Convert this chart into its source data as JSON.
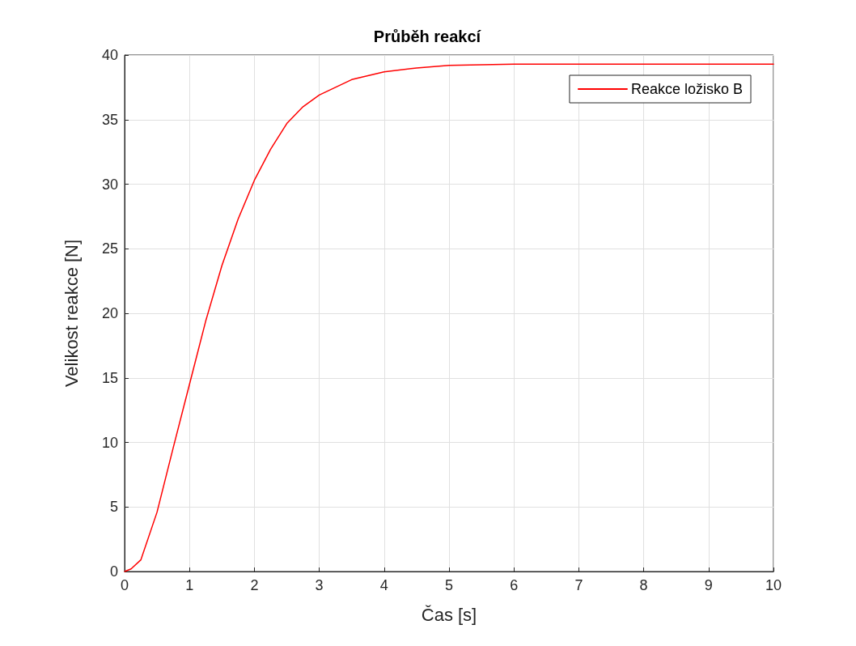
{
  "chart_data": {
    "type": "line",
    "title": "Průběh reakcí",
    "xlabel": "Čas [s]",
    "ylabel": "Velikost reakce [N]",
    "xlim": [
      0,
      10
    ],
    "xticks": [
      0,
      1,
      2,
      3,
      4,
      5,
      6,
      7,
      8,
      9,
      10
    ],
    "ylim": [
      0,
      40
    ],
    "yticks": [
      0,
      5,
      10,
      15,
      20,
      25,
      30,
      35,
      40
    ],
    "grid": true,
    "legend": "top right",
    "marker": "none",
    "line_style": "solid",
    "series": [
      {
        "name": "Reakce ložisko B",
        "color": "#ff0000",
        "x": [
          0,
          0.1,
          0.25,
          0.5,
          0.75,
          1,
          1.25,
          1.5,
          1.75,
          2,
          2.25,
          2.5,
          2.75,
          3,
          3.5,
          4,
          4.5,
          5,
          6,
          7,
          8,
          10
        ],
        "values": [
          0,
          0.2,
          0.9,
          4.6,
          9.6,
          14.5,
          19.4,
          23.7,
          27.3,
          30.3,
          32.7,
          34.7,
          36,
          36.9,
          38.1,
          38.7,
          39,
          39.2,
          39.3,
          39.3,
          39.3,
          39.3
        ]
      }
    ]
  }
}
